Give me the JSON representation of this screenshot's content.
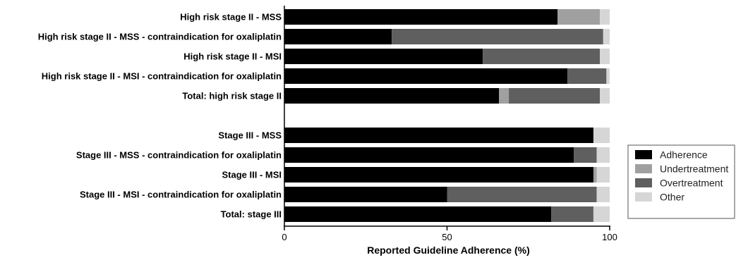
{
  "chart_data": {
    "type": "bar",
    "orientation": "horizontal",
    "stacked": true,
    "categories": [
      "High risk stage II - MSS",
      "High risk stage II - MSS - contraindication for oxaliplatin",
      "High risk stage II - MSI",
      "High risk stage II - MSI - contraindication for oxaliplatin",
      "Total: high risk stage II",
      "Stage III - MSS",
      "Stage III - MSS - contraindication for oxaliplatin",
      "Stage III - MSI",
      "Stage III - MSI - contraindication for oxaliplatin",
      "Total: stage III"
    ],
    "groups": [
      [
        0,
        1,
        2,
        3,
        4
      ],
      [
        5,
        6,
        7,
        8,
        9
      ]
    ],
    "series": [
      {
        "name": "Adherence",
        "color": "#000000",
        "values": [
          84,
          33,
          61,
          87,
          66,
          95,
          89,
          95,
          50,
          82
        ]
      },
      {
        "name": "Undertreatment",
        "color": "#a0a0a0",
        "values": [
          13,
          0,
          0,
          0,
          3,
          0,
          0,
          1,
          0,
          0
        ]
      },
      {
        "name": "Overtreatment",
        "color": "#5f5f5f",
        "values": [
          0,
          65,
          36,
          12,
          28,
          0,
          7,
          0,
          46,
          13
        ]
      },
      {
        "name": "Other",
        "color": "#d6d6d6",
        "values": [
          3,
          2,
          3,
          1,
          3,
          5,
          4,
          4,
          4,
          5
        ]
      }
    ],
    "xlabel": "Reported Guideline Adherence  (%)",
    "xlim": [
      0,
      100
    ],
    "xticks": [
      "0",
      "50",
      "100"
    ],
    "grid": false,
    "legend_position": "right"
  }
}
